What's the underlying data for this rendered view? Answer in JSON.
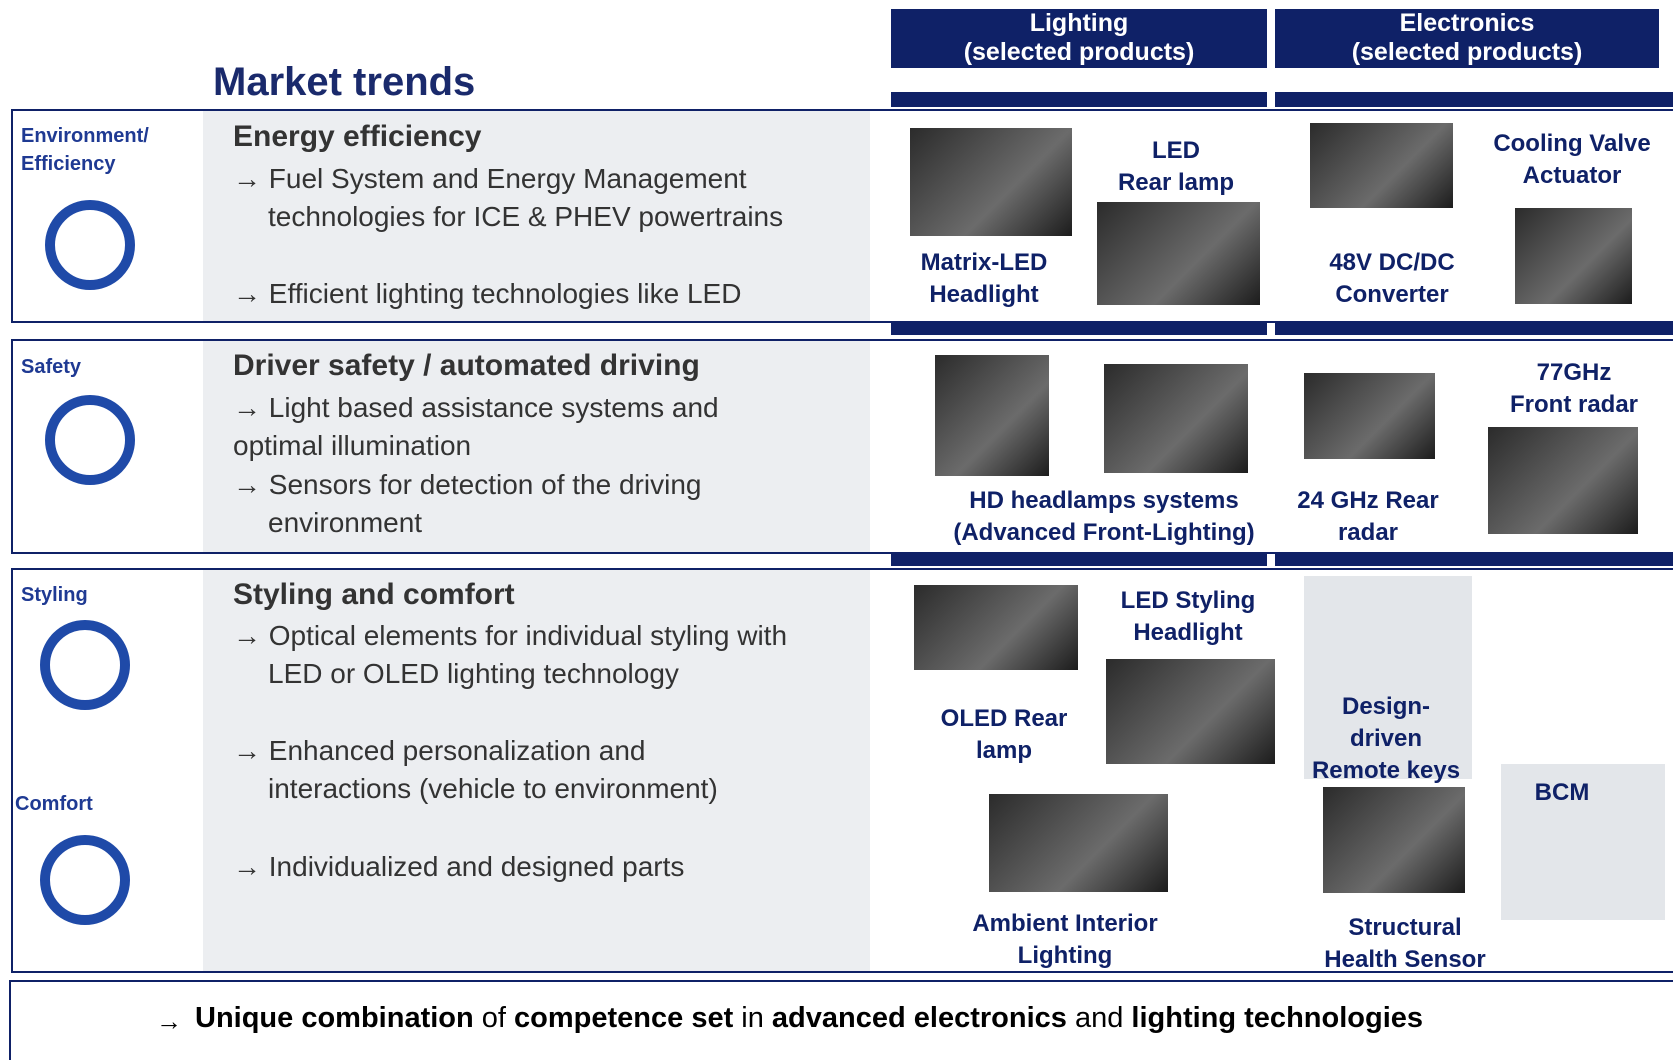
{
  "title": "Market trends",
  "columns": [
    {
      "title": "Lighting",
      "subtitle": "(selected products)"
    },
    {
      "title": "Electronics",
      "subtitle": "(selected products)"
    }
  ],
  "rows": [
    {
      "categories": [
        [
          "Environment/",
          "Efficiency"
        ]
      ],
      "heading": "Energy efficiency",
      "bullets": [
        [
          "→ Fuel System and Energy Management",
          "technologies for ICE & PHEV powertrains"
        ],
        [
          "→ Efficient lighting technologies like LED"
        ]
      ],
      "products": [
        [
          "Matrix-LED",
          "Headlight"
        ],
        [
          "LED",
          "Rear lamp"
        ],
        [
          "48V DC/DC",
          "Converter"
        ],
        [
          "Cooling Valve",
          "Actuator"
        ]
      ]
    },
    {
      "categories": [
        [
          "Safety"
        ]
      ],
      "heading": "Driver safety / automated driving",
      "bullets": [
        [
          "→ Light based assistance systems and",
          "optimal illumination"
        ],
        [
          "→ Sensors for detection of the driving",
          "environment"
        ]
      ],
      "products": [
        [
          "HD headlamps systems",
          "(Advanced Front-Lighting)"
        ],
        [
          "24 GHz Rear",
          "radar"
        ],
        [
          "77GHz",
          "Front radar"
        ]
      ]
    },
    {
      "categories": [
        [
          "Styling"
        ],
        [
          "Comfort"
        ]
      ],
      "heading": "Styling and comfort",
      "bullets": [
        [
          "→ Optical elements for individual styling with",
          "LED or OLED lighting technology"
        ],
        [
          "→ Enhanced personalization and",
          "interactions (vehicle to environment)"
        ],
        [
          "→ Individualized and designed parts"
        ]
      ],
      "products": [
        [
          "LED Styling",
          "Headlight"
        ],
        [
          "OLED Rear",
          "lamp"
        ],
        [
          "Ambient Interior",
          "Lighting"
        ],
        [
          "Design-",
          "driven",
          "Remote keys"
        ],
        [
          "Structural",
          "Health Sensor"
        ],
        [
          "BCM"
        ]
      ]
    }
  ],
  "footer": {
    "arrow": "→",
    "segments": [
      {
        "text": "Unique combination",
        "bold": true
      },
      {
        "text": " of ",
        "bold": false
      },
      {
        "text": "competence set",
        "bold": true
      },
      {
        "text": " in ",
        "bold": false
      },
      {
        "text": "advanced electronics",
        "bold": true
      },
      {
        "text": " and ",
        "bold": false
      },
      {
        "text": "lighting technologies",
        "bold": true
      }
    ]
  }
}
